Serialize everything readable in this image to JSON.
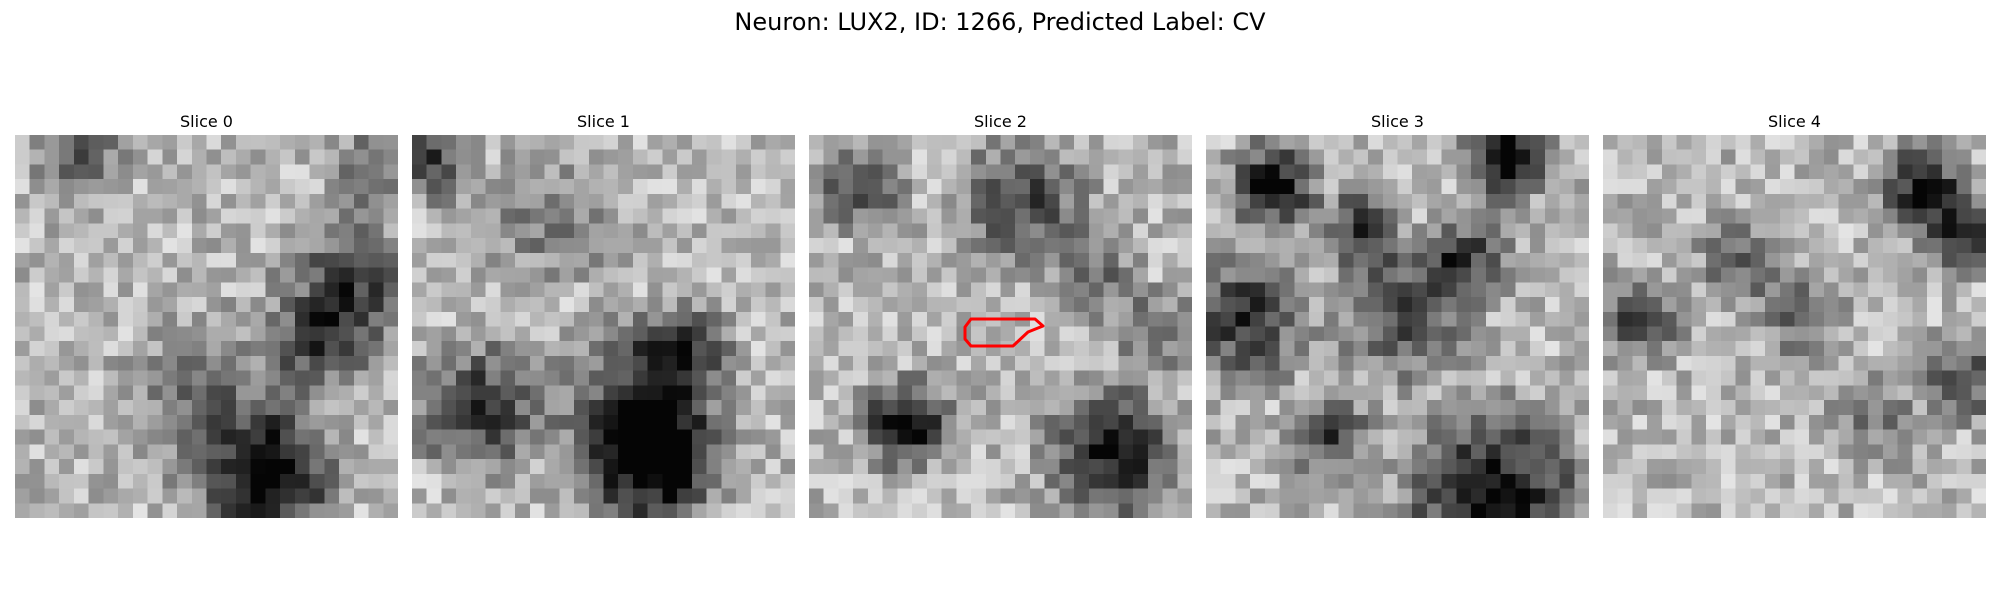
{
  "figure": {
    "title": "Neuron: LUX2, ID: 1266, Predicted Label: CV"
  },
  "panels": [
    {
      "title": "Slice 0"
    },
    {
      "title": "Slice 1"
    },
    {
      "title": "Slice 2"
    },
    {
      "title": "Slice 3"
    },
    {
      "title": "Slice 4"
    }
  ],
  "colors": {
    "outline": "#ff0000",
    "colormap": "grayscale"
  }
}
